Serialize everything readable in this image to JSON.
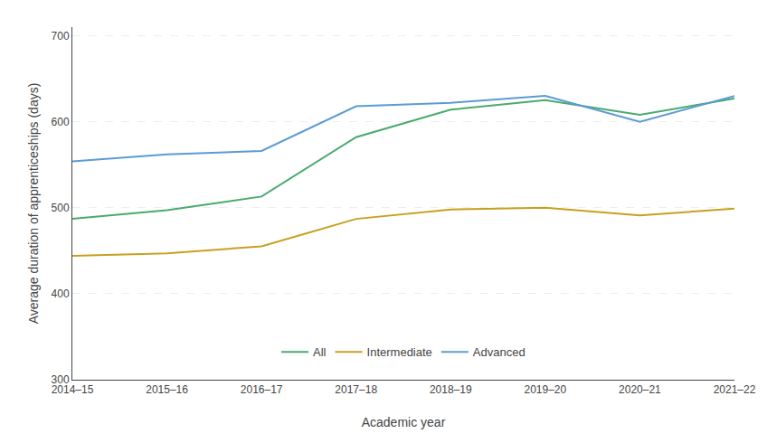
{
  "chart_data": {
    "type": "line",
    "xlabel": "Academic year",
    "ylabel": "Average duration of apprenticeships (days)",
    "categories": [
      "2014–15",
      "2015–16",
      "2016–17",
      "2017–18",
      "2018–19",
      "2019–20",
      "2020–21",
      "2021–22"
    ],
    "series": [
      {
        "name": "All",
        "color": "#4aaa6e",
        "values": [
          487,
          497,
          513,
          582,
          614,
          625,
          608,
          627
        ]
      },
      {
        "name": "Intermediate",
        "color": "#c8a020",
        "values": [
          444,
          447,
          455,
          487,
          498,
          500,
          491,
          499
        ]
      },
      {
        "name": "Advanced",
        "color": "#5b9bd5",
        "values": [
          554,
          562,
          566,
          618,
          622,
          630,
          600,
          630
        ]
      }
    ],
    "ylim": [
      300,
      710
    ],
    "yticks": [
      300,
      400,
      500,
      600,
      700
    ],
    "grid": true,
    "legend": "bottom"
  }
}
